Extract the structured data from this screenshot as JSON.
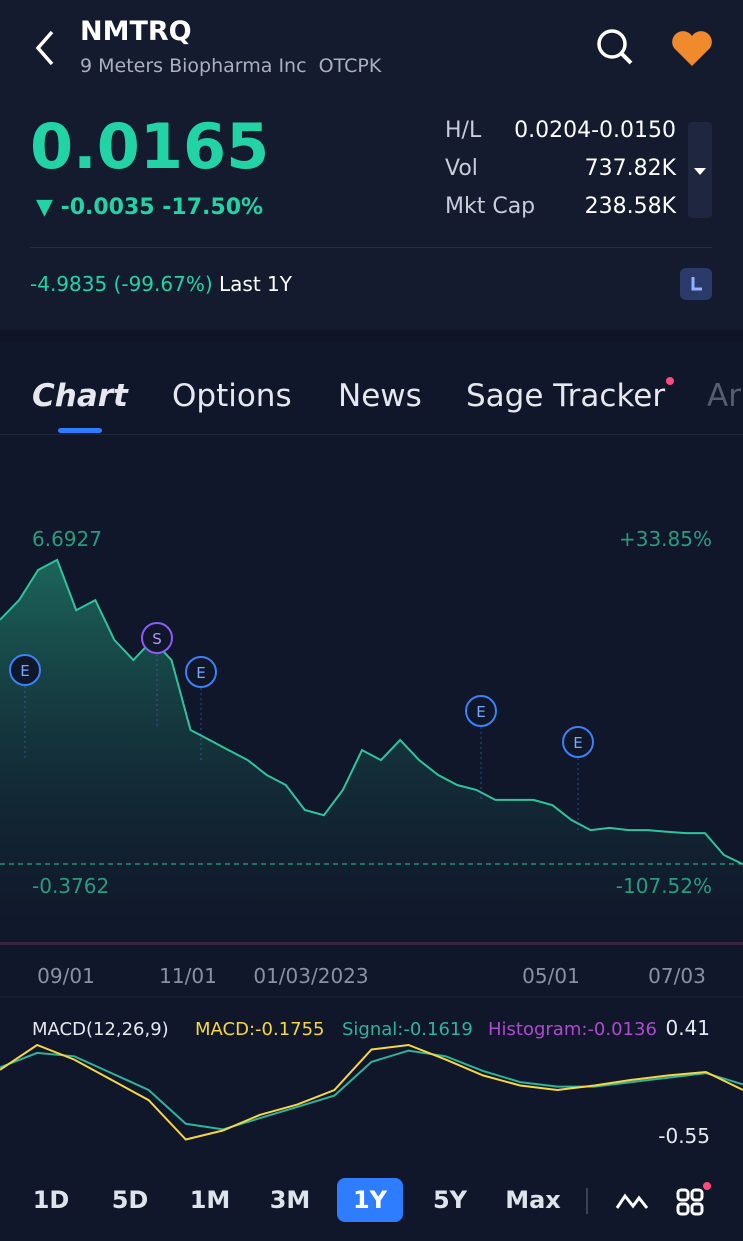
{
  "header": {
    "symbol": "NMTRQ",
    "company": "9 Meters Biopharma Inc",
    "exchange": "OTCPK"
  },
  "quote": {
    "price": "0.0165",
    "change": "-0.0035",
    "change_pct": "-17.50%",
    "stats": [
      {
        "label": "H/L",
        "value": "0.0204-0.0150"
      },
      {
        "label": "Vol",
        "value": "737.82K"
      },
      {
        "label": "Mkt Cap",
        "value": "238.58K"
      }
    ],
    "period_change": "-4.9835 (-99.67%)",
    "period": "Last 1Y"
  },
  "tabs": [
    "Chart",
    "Options",
    "News",
    "Sage Tracker",
    "Ar"
  ],
  "price_chart": {
    "type": "area",
    "ylim": [
      -0.3762,
      6.6927
    ],
    "pct_labels": [
      "+33.85%",
      "-107.52%"
    ],
    "values": [
      5.21,
      5.66,
      6.35,
      6.58,
      5.43,
      5.66,
      4.75,
      4.29,
      4.75,
      4.29,
      2.69,
      2.46,
      2.23,
      2.0,
      1.66,
      1.43,
      0.86,
      0.74,
      1.32,
      2.23,
      2.0,
      2.46,
      2.0,
      1.66,
      1.43,
      1.32,
      1.09,
      1.09,
      1.09,
      0.97,
      0.63,
      0.4,
      0.45,
      0.4,
      0.4,
      0.36,
      0.33,
      0.33,
      -0.17,
      -0.38
    ],
    "x_labels": [
      "09/01",
      "11/01",
      "01/03/2023",
      "05/01",
      "07/03"
    ],
    "events": [
      "E",
      "S",
      "E",
      "E",
      "E"
    ]
  },
  "macd": {
    "title": "MACD(12,26,9)",
    "macd_label": "MACD:-0.1755",
    "signal_label": "Signal:-0.1619",
    "histogram_label": "Histogram:-0.0136",
    "ylim": [
      -0.55,
      0.41
    ],
    "macd_values": [
      0.03,
      0.25,
      0.12,
      -0.06,
      -0.24,
      -0.59,
      -0.51,
      -0.37,
      -0.28,
      -0.15,
      0.21,
      0.25,
      0.12,
      -0.02,
      -0.11,
      -0.15,
      -0.11,
      -0.06,
      -0.02,
      0.01,
      -0.15
    ],
    "signal_values": [
      0.05,
      0.18,
      0.15,
      0.0,
      -0.15,
      -0.45,
      -0.5,
      -0.4,
      -0.3,
      -0.2,
      0.1,
      0.2,
      0.15,
      0.02,
      -0.08,
      -0.12,
      -0.12,
      -0.08,
      -0.04,
      0.0,
      -0.1
    ]
  },
  "range_buttons": [
    "1D",
    "5D",
    "1M",
    "3M",
    "1Y",
    "5Y",
    "Max"
  ]
}
